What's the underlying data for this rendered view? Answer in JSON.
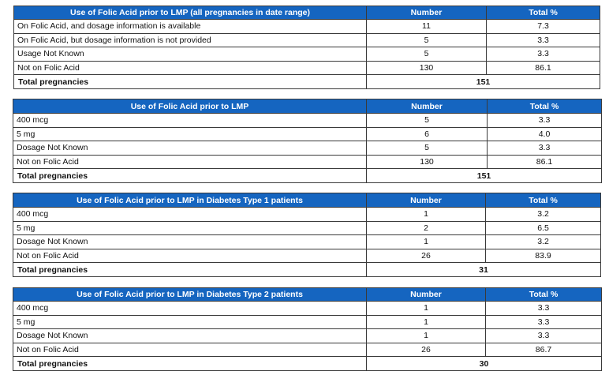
{
  "tables": [
    {
      "headers": [
        "Use of Folic Acid prior to LMP (all pregnancies in date range)",
        "Number",
        "Total %"
      ],
      "rows": [
        {
          "label": "On Folic Acid, and dosage information is available",
          "number": "11",
          "pct": "7.3"
        },
        {
          "label": "On Folic Acid, but dosage information is not provided",
          "number": "5",
          "pct": "3.3"
        },
        {
          "label": "Usage Not Known",
          "number": "5",
          "pct": "3.3"
        },
        {
          "label": "Not on Folic Acid",
          "number": "130",
          "pct": "86.1"
        }
      ],
      "total": {
        "label": "Total pregnancies",
        "value": "151"
      }
    },
    {
      "headers": [
        "Use of Folic Acid prior to LMP",
        "Number",
        "Total %"
      ],
      "rows": [
        {
          "label": "400 mcg",
          "number": "5",
          "pct": "3.3"
        },
        {
          "label": "5 mg",
          "number": "6",
          "pct": "4.0"
        },
        {
          "label": "Dosage Not Known",
          "number": "5",
          "pct": "3.3"
        },
        {
          "label": "Not on Folic Acid",
          "number": "130",
          "pct": "86.1"
        }
      ],
      "total": {
        "label": "Total pregnancies",
        "value": "151"
      }
    },
    {
      "headers": [
        "Use of Folic Acid prior to LMP in Diabetes Type 1 patients",
        "Number",
        "Total %"
      ],
      "rows": [
        {
          "label": "400 mcg",
          "number": "1",
          "pct": "3.2"
        },
        {
          "label": "5 mg",
          "number": "2",
          "pct": "6.5"
        },
        {
          "label": "Dosage Not Known",
          "number": "1",
          "pct": "3.2"
        },
        {
          "label": "Not on Folic Acid",
          "number": "26",
          "pct": "83.9"
        }
      ],
      "total": {
        "label": "Total pregnancies",
        "value": "31"
      }
    },
    {
      "headers": [
        "Use of Folic Acid prior to LMP in Diabetes Type 2 patients",
        "Number",
        "Total %"
      ],
      "rows": [
        {
          "label": "400 mcg",
          "number": "1",
          "pct": "3.3"
        },
        {
          "label": "5 mg",
          "number": "1",
          "pct": "3.3"
        },
        {
          "label": "Dosage Not Known",
          "number": "1",
          "pct": "3.3"
        },
        {
          "label": "Not on Folic Acid",
          "number": "26",
          "pct": "86.7"
        }
      ],
      "total": {
        "label": "Total pregnancies",
        "value": "30"
      }
    }
  ]
}
